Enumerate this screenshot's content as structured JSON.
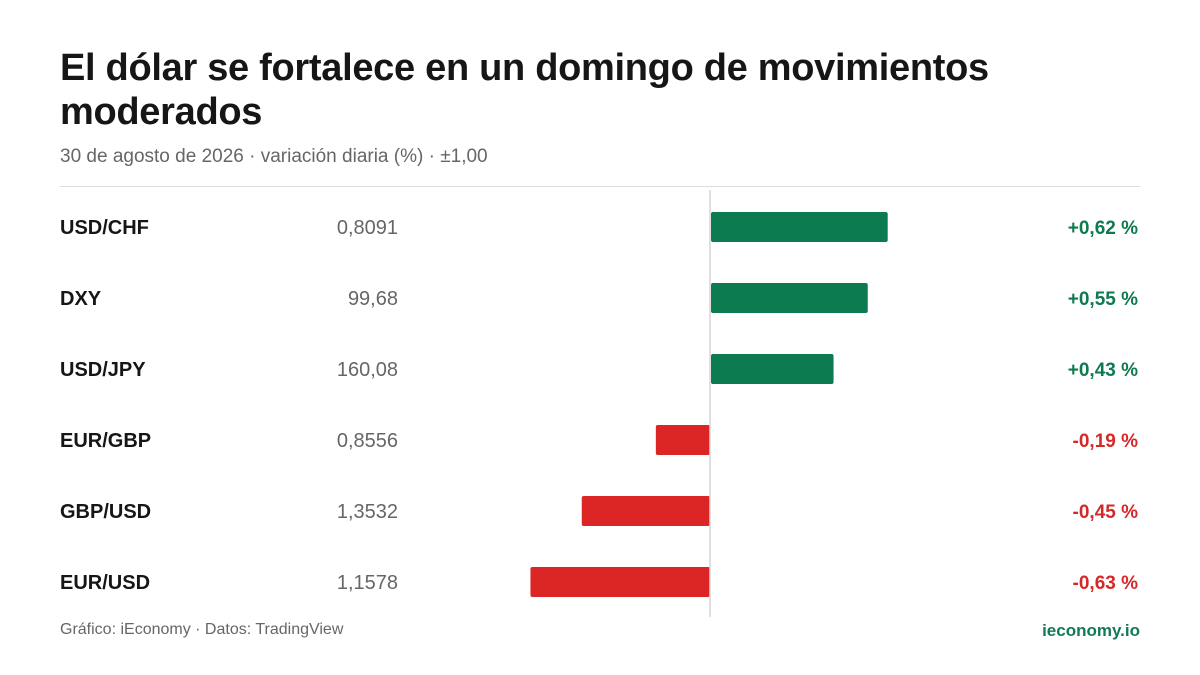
{
  "header": {
    "title": "El dólar se fortalece en un domingo de movimientos moderados",
    "subtitle": "30 de agosto de 2026 · variación diaria (%) · ±1,00"
  },
  "footer": {
    "source": "Gráfico: iEconomy · Datos: TradingView",
    "brand": "ieconomy.io"
  },
  "colors": {
    "positive": "#0c7b4f",
    "negative": "#dc2626",
    "positive_text": "#0e7a4f",
    "negative_text": "#d62828",
    "axis": "#d6d6d6"
  },
  "chart_data": {
    "type": "bar",
    "orientation": "horizontal",
    "categories": [
      "USD/CHF",
      "DXY",
      "USD/JPY",
      "EUR/GBP",
      "GBP/USD",
      "EUR/USD"
    ],
    "prices": [
      "0,8091",
      "99,68",
      "160,08",
      "0,8556",
      "1,3532",
      "1,1578"
    ],
    "values": [
      0.62,
      0.55,
      0.43,
      -0.19,
      -0.45,
      -0.63
    ],
    "value_labels": [
      "+0,62 %",
      "+0,55 %",
      "+0,43 %",
      "-0,19 %",
      "-0,45 %",
      "-0,63 %"
    ],
    "xlim": [
      -1,
      1
    ],
    "grid": false,
    "legend": "none"
  }
}
